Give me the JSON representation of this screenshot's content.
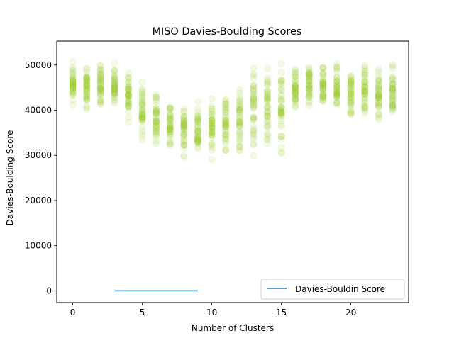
{
  "chart_data": {
    "type": "scatter",
    "title": "MISO Davies-Boulding Scores",
    "xlabel": "Number of Clusters",
    "ylabel": "Davies-Boulding Score",
    "xlim": [
      -1.15,
      24.15
    ],
    "ylim": [
      -2600,
      55300
    ],
    "xticks": [
      0,
      5,
      10,
      15,
      20
    ],
    "yticks": [
      0,
      10000,
      20000,
      30000,
      40000,
      50000
    ],
    "grid": false,
    "legend": {
      "position": "lower right",
      "entries": [
        "Davies-Bouldin Score"
      ]
    },
    "colors": {
      "scatter": "#9acd32",
      "line": "#1f77b4"
    },
    "scatter_columns": [
      {
        "x": 0,
        "min": 38500,
        "max": 52500
      },
      {
        "x": 1,
        "min": 38000,
        "max": 52000
      },
      {
        "x": 2,
        "min": 40000,
        "max": 51500
      },
      {
        "x": 3,
        "min": 39500,
        "max": 51000
      },
      {
        "x": 4,
        "min": 36000,
        "max": 49500
      },
      {
        "x": 5,
        "min": 33000,
        "max": 48000
      },
      {
        "x": 6,
        "min": 31000,
        "max": 45000
      },
      {
        "x": 7,
        "min": 29500,
        "max": 44000
      },
      {
        "x": 8,
        "min": 28500,
        "max": 43500
      },
      {
        "x": 9,
        "min": 28000,
        "max": 43500
      },
      {
        "x": 10,
        "min": 28000,
        "max": 44000
      },
      {
        "x": 11,
        "min": 28500,
        "max": 46000
      },
      {
        "x": 12,
        "min": 28000,
        "max": 48500
      },
      {
        "x": 13,
        "min": 27500,
        "max": 52500
      },
      {
        "x": 14,
        "min": 29000,
        "max": 52500
      },
      {
        "x": 15,
        "min": 28500,
        "max": 52000
      },
      {
        "x": 16,
        "min": 37000,
        "max": 52000
      },
      {
        "x": 17,
        "min": 38500,
        "max": 51500
      },
      {
        "x": 18,
        "min": 39000,
        "max": 51000
      },
      {
        "x": 19,
        "min": 37500,
        "max": 51500
      },
      {
        "x": 20,
        "min": 35500,
        "max": 52000
      },
      {
        "x": 21,
        "min": 36000,
        "max": 52500
      },
      {
        "x": 22,
        "min": 35000,
        "max": 52500
      },
      {
        "x": 23,
        "min": 35500,
        "max": 52500
      }
    ],
    "series": [
      {
        "name": "Davies-Bouldin Score",
        "x": [
          3,
          4,
          5,
          6,
          7,
          8,
          9
        ],
        "y": [
          0,
          0,
          0,
          0,
          0,
          0,
          0
        ]
      }
    ]
  }
}
